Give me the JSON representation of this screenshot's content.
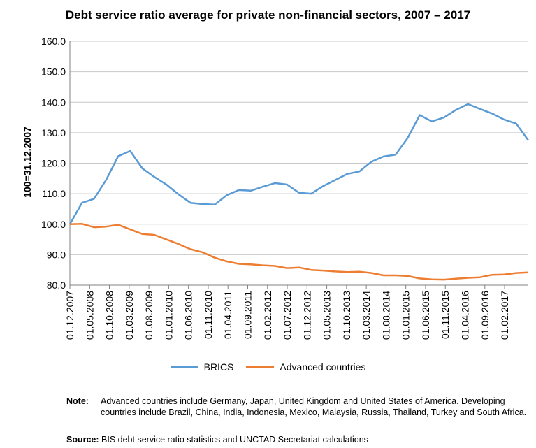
{
  "chart_data": {
    "type": "line",
    "title": "Debt service ratio average for private non-financial sectors, 2007 – 2017",
    "xlabel": "",
    "ylabel": "100=31.12.2007",
    "ylim": [
      80,
      160
    ],
    "yticks": [
      "80.0",
      "90.0",
      "100.0",
      "110.0",
      "120.0",
      "130.0",
      "140.0",
      "150.0",
      "160.0"
    ],
    "xtick_labels": [
      "01.12.2007",
      "01.05.2008",
      "01.10.2008",
      "01.03.2009",
      "01.08.2009",
      "01.01.2010",
      "01.06.2010",
      "01.11.2010",
      "01.04.2011",
      "01.09.2011",
      "01.02.2012",
      "01.07.2012",
      "01.12.2012",
      "01.05.2013",
      "01.10.2013",
      "01.03.2014",
      "01.08.2014",
      "01.01.2015",
      "01.06.2015",
      "01.11.2015",
      "01.04.2016",
      "01.09.2016",
      "01.02.2017"
    ],
    "grid": true,
    "legend_position": "bottom",
    "series": [
      {
        "name": "BRICS",
        "color": "#5b9bd5",
        "values": [
          100.0,
          107.0,
          108.3,
          114.5,
          122.3,
          124.0,
          118.3,
          115.5,
          113.0,
          109.8,
          107.0,
          106.6,
          106.4,
          109.5,
          111.2,
          111.0,
          112.3,
          113.5,
          113.0,
          110.3,
          110.0,
          112.5,
          114.5,
          116.5,
          117.3,
          120.5,
          122.2,
          122.8,
          128.3,
          135.8,
          133.7,
          135.0,
          137.5,
          139.4,
          137.8,
          136.3,
          134.3,
          133.0,
          127.5
        ]
      },
      {
        "name": "Advanced countries",
        "color": "#ed7d31",
        "values": [
          100.0,
          100.1,
          99.0,
          99.2,
          99.8,
          98.3,
          96.8,
          96.5,
          95.0,
          93.5,
          91.8,
          90.8,
          89.0,
          87.8,
          87.0,
          86.8,
          86.5,
          86.3,
          85.6,
          85.8,
          85.0,
          84.8,
          84.5,
          84.3,
          84.4,
          84.0,
          83.2,
          83.2,
          83.0,
          82.2,
          81.9,
          81.8,
          82.1,
          82.4,
          82.6,
          83.4,
          83.5,
          84.0,
          84.2
        ]
      }
    ]
  },
  "note": {
    "label": "Note:",
    "text": "Advanced countries  include Germany, Japan, United Kingdom and United States of America. Developing countries include Brazil, China, India, Indonesia, Mexico, Malaysia, Russia, Thailand, Turkey and South Africa."
  },
  "source": {
    "label": "Source:",
    "text": "BIS debt service ratio statistics and UNCTAD Secretariat calculations"
  }
}
